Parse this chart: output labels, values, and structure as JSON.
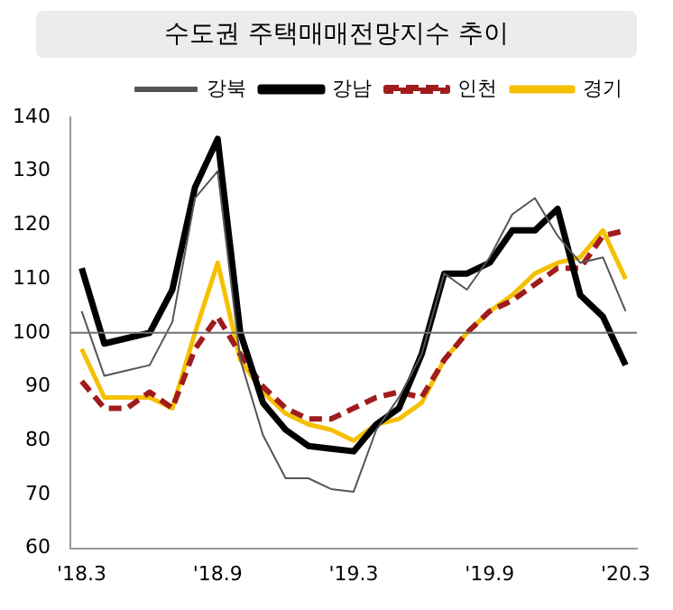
{
  "chart_data": {
    "type": "line",
    "title": "수도권 주택매매전망지수 추이",
    "categories": [
      "'18.3",
      null,
      null,
      null,
      null,
      null,
      "'18.9",
      null,
      null,
      null,
      null,
      null,
      "'19.3",
      null,
      null,
      null,
      null,
      null,
      "'19.9",
      null,
      null,
      null,
      null,
      null,
      "'20.3"
    ],
    "series": [
      {
        "name": "강북",
        "color": "#555555",
        "line_style": "solid",
        "values": [
          104,
          92,
          93,
          94,
          102,
          125,
          130,
          95,
          81,
          73,
          73,
          71,
          70.5,
          82,
          88,
          96,
          111,
          108,
          114,
          122,
          125,
          118,
          113,
          114,
          104
        ]
      },
      {
        "name": "강남",
        "color": "#000000",
        "line_style": "solid",
        "values": [
          112,
          98,
          99,
          100,
          108,
          127,
          136,
          100,
          87,
          82,
          79,
          78.5,
          78,
          83,
          86,
          96,
          111,
          111,
          113,
          119,
          119,
          123,
          107,
          103,
          94
        ]
      },
      {
        "name": "인천",
        "color": "#a01c1c",
        "line_style": "dashed",
        "values": [
          91,
          86,
          86,
          89,
          86,
          97,
          103,
          96,
          90,
          86,
          84,
          84,
          86,
          88,
          89,
          88,
          95,
          100,
          104,
          106,
          109,
          112,
          112,
          118,
          119
        ]
      },
      {
        "name": "경기",
        "color": "#f5c000",
        "line_style": "solid",
        "values": [
          97,
          88,
          88,
          88,
          86,
          100,
          113,
          95,
          89,
          85,
          83,
          82,
          80,
          83,
          84,
          87,
          95,
          100,
          104,
          107,
          111,
          113,
          114,
          119,
          110
        ]
      }
    ],
    "ylim": [
      60,
      140
    ],
    "yticks": [
      60,
      70,
      80,
      90,
      100,
      110,
      120,
      130,
      140
    ],
    "ref_lines": [
      {
        "axis": "y",
        "value": 100,
        "color": "#707070"
      }
    ],
    "grid": false,
    "legend": "top right",
    "marker": "none"
  }
}
